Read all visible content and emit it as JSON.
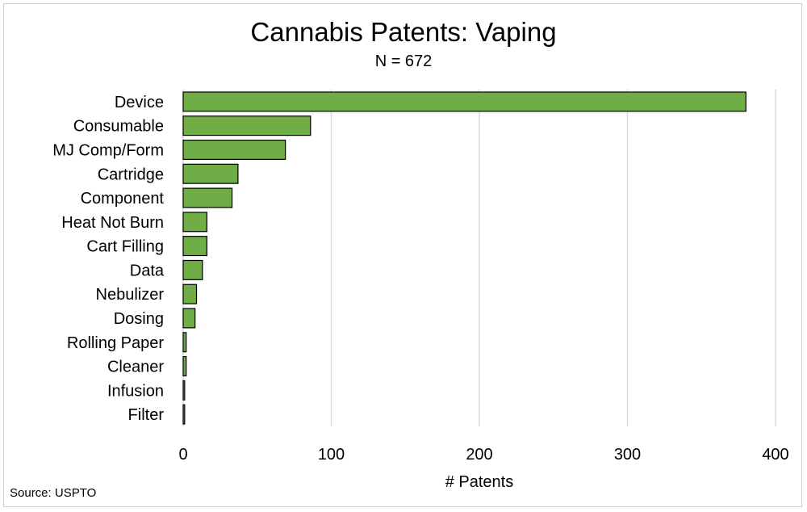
{
  "chart_data": {
    "type": "bar",
    "orientation": "horizontal",
    "title": "Cannabis Patents: Vaping",
    "subtitle": "N = 672",
    "xlabel": "# Patents",
    "ylabel": "",
    "xlim": [
      0,
      400
    ],
    "x_ticks": [
      0,
      100,
      200,
      300,
      400
    ],
    "grid": true,
    "categories": [
      "Device",
      "Consumable",
      "MJ Comp/Form",
      "Cartridge",
      "Component",
      "Heat Not Burn",
      "Cart Filling",
      "Data",
      "Nebulizer",
      "Dosing",
      "Rolling Paper",
      "Cleaner",
      "Infusion",
      "Filter"
    ],
    "values": [
      380,
      86,
      69,
      37,
      33,
      16,
      16,
      13,
      9,
      8,
      2,
      2,
      1,
      1
    ],
    "bar_color": "#70ad47",
    "bar_outline": "#000000",
    "grid_color": "#d9d9d9"
  },
  "source_note": "Source: USPTO"
}
